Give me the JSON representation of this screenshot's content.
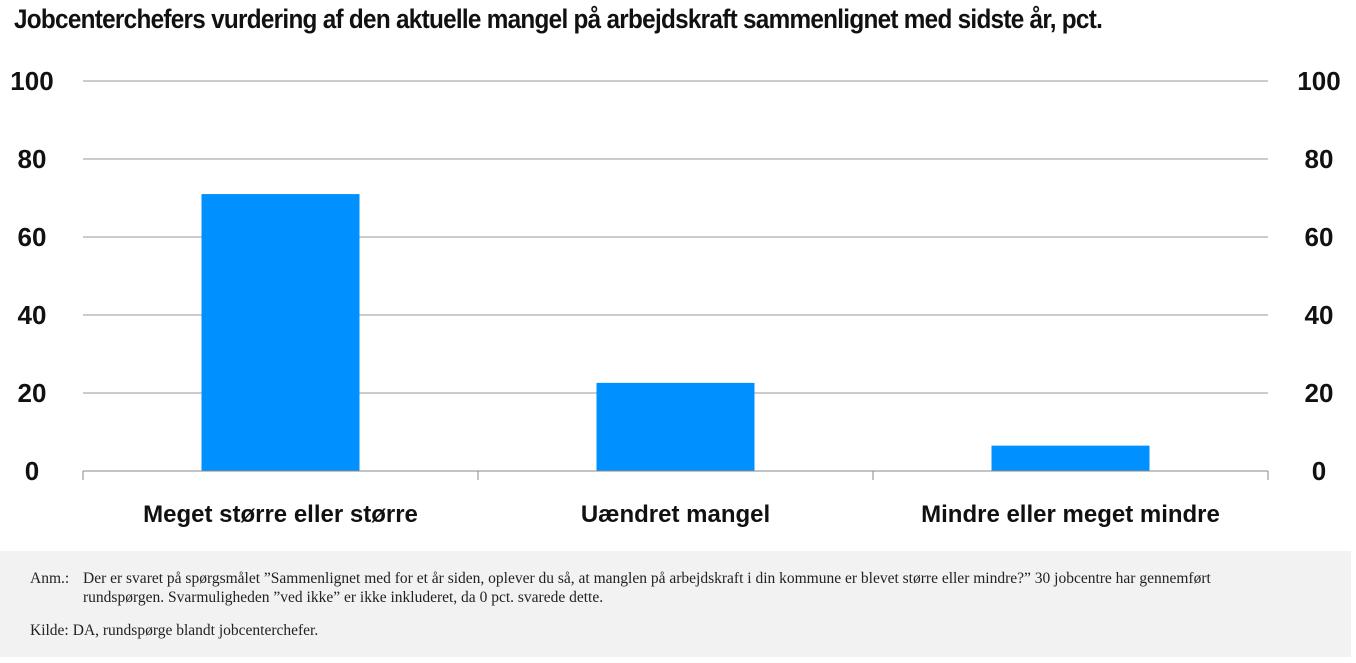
{
  "title": "Jobcenterchefers vurdering af den aktuelle mangel på arbejdskraft sammenlignet med sidste år, pct.",
  "chart_data": {
    "type": "bar",
    "categories": [
      "Meget større eller større",
      "Uændret mangel",
      "Mindre eller meget mindre"
    ],
    "values": [
      71,
      22.6,
      6.5
    ],
    "ylim": [
      0,
      100
    ],
    "yticks": [
      "0",
      "20",
      "40",
      "60",
      "80",
      "100"
    ],
    "y_axis_sides": "both",
    "grid": true,
    "bar_color": "#0090ff",
    "gridline_color": "#9a9a9a"
  },
  "notes": {
    "anm_label": "Anm.:",
    "anm_text": "Der er svaret på spørgsmålet ”Sammenlignet med for et år siden, oplever du så, at manglen på arbejdskraft i din kommune er blevet større eller mindre?” 30 jobcentre har gennemført rundspørgen. Svarmuligheden ”ved ikke” er ikke inkluderet, da 0 pct. svarede dette.",
    "kilde_label": "Kilde:",
    "kilde_text": "DA, rundspørge blandt jobcenterchefer."
  }
}
